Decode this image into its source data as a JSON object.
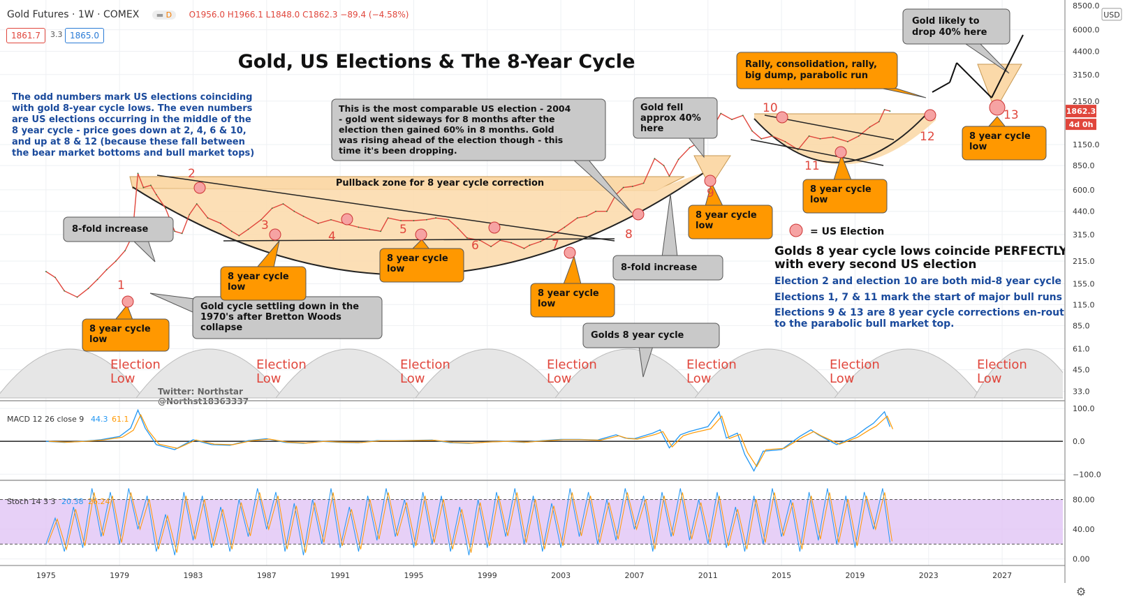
{
  "header": {
    "symbol": "Gold Futures · 1W · COMEX",
    "ohlc": "O1956.0 H1966.1 L1848.0 C1862.3 −89.4 (−4.58%)",
    "bid": "1861.7",
    "spread": "3.3",
    "ask": "1865.0",
    "badge": "D"
  },
  "colors": {
    "price_line": "#e0463c",
    "accent_blue": "#1a4a9c",
    "annotation_red": "#e0463c",
    "box_orange": "#ff9800",
    "box_grey": "#c9c9c9",
    "band_fill": "#fbd9a9",
    "macd_blue": "#2196f3",
    "macd_orange": "#ff9800",
    "stoch_band": "#e1c4f5"
  },
  "chart_data": [
    {
      "type": "line",
      "title": "Gold, US Elections & The 8-Year Cycle",
      "ylog": true,
      "ylim": [
        30,
        8500
      ],
      "xlim": [
        1972.5,
        2030.3
      ],
      "y_ticks": [
        "8500.0",
        "6000.0",
        "4400.0",
        "3150.0",
        "2150.0",
        "1150.0",
        "850.0",
        "600.0",
        "440.0",
        "315.0",
        "215.0",
        "155.0",
        "115.0",
        "85.0",
        "61.0",
        "45.0",
        "33.0"
      ],
      "y_tick_values": [
        8500,
        6000,
        4400,
        3150,
        2150,
        1150,
        850,
        600,
        440,
        315,
        215,
        155,
        115,
        85,
        61,
        45,
        33
      ],
      "x_ticks": [
        "1975",
        "1979",
        "1983",
        "1987",
        "1991",
        "1995",
        "1999",
        "2003",
        "2007",
        "2011",
        "2015",
        "2019",
        "2023",
        "2027"
      ],
      "x_tick_values": [
        1975,
        1979,
        1983,
        1987,
        1991,
        1995,
        1999,
        2003,
        2007,
        2011,
        2015,
        2019,
        2023,
        2027
      ],
      "currency": "USD",
      "last_price": "1862.3",
      "countdown": "4d 0h",
      "series": [
        {
          "x": [
            1975.0,
            1975.5,
            1976.0,
            1976.7,
            1977.3,
            1977.8,
            1978.3,
            1978.8,
            1979.3,
            1979.7,
            1980.0,
            1980.3,
            1980.7,
            1981.0,
            1981.5,
            1982.0,
            1982.4,
            1982.8,
            1983.2,
            1983.8,
            1984.5,
            1985.1,
            1985.5,
            1986.0,
            1986.7,
            1987.3,
            1987.9,
            1988.5,
            1989.0,
            1989.8,
            1990.5,
            1991.2,
            1992.0,
            1992.6,
            1993.2,
            1993.6,
            1994.3,
            1995.0,
            1995.7,
            1996.2,
            1996.9,
            1997.4,
            1997.9,
            1998.6,
            1999.2,
            1999.7,
            2000.3,
            2001.0,
            2001.3,
            2001.9,
            2002.5,
            2003.2,
            2003.9,
            2004.4,
            2004.9,
            2005.5,
            2006.0,
            2006.4,
            2006.9,
            2007.5,
            2008.1,
            2008.6,
            2008.9,
            2009.4,
            2010.0,
            2010.6,
            2011.2,
            2011.7,
            2012.3,
            2012.9,
            2013.4,
            2013.9,
            2014.5,
            2015.2,
            2015.9,
            2016.5,
            2017.1,
            2017.8,
            2018.6,
            2019.2,
            2019.8,
            2020.3,
            2020.6,
            2020.9
          ],
          "values": [
            185,
            170,
            140,
            128,
            145,
            165,
            190,
            215,
            250,
            310,
            760,
            620,
            640,
            560,
            460,
            330,
            320,
            420,
            490,
            400,
            370,
            330,
            310,
            340,
            390,
            460,
            490,
            440,
            410,
            370,
            390,
            370,
            350,
            340,
            330,
            400,
            385,
            385,
            390,
            400,
            390,
            345,
            300,
            290,
            265,
            290,
            280,
            258,
            270,
            285,
            310,
            350,
            400,
            410,
            440,
            440,
            560,
            620,
            630,
            660,
            940,
            850,
            730,
            930,
            1100,
            1200,
            1430,
            1800,
            1650,
            1750,
            1400,
            1250,
            1300,
            1200,
            1070,
            1300,
            1250,
            1280,
            1200,
            1300,
            1480,
            1600,
            1900,
            1862
          ]
        }
      ]
    },
    {
      "type": "line",
      "title": "MACD 12 26 close 9",
      "value1": "44.3",
      "value2": "61.1",
      "ylim": [
        -110,
        115
      ],
      "y_ticks": [
        "100.0",
        "0.0",
        "−100.0"
      ],
      "y_tick_values": [
        100,
        0,
        -100
      ],
      "series": [
        {
          "x": [
            1975,
            1976,
            1977,
            1978,
            1979,
            1979.6,
            1980.0,
            1980.4,
            1981,
            1982,
            1983,
            1984,
            1985,
            1986,
            1987,
            1988,
            1989,
            1990,
            1991,
            1992,
            1993,
            1994,
            1995,
            1996,
            1997,
            1998,
            1999,
            2000,
            2001,
            2002,
            2003,
            2004,
            2005,
            2006,
            2006.5,
            2007,
            2008,
            2008.4,
            2008.9,
            2009.5,
            2010,
            2011,
            2011.6,
            2012,
            2012.6,
            2013,
            2013.5,
            2014,
            2015,
            2016,
            2016.6,
            2017,
            2018,
            2019,
            2019.6,
            2020,
            2020.6,
            2020.9
          ],
          "values": [
            0,
            -3,
            0,
            5,
            15,
            40,
            95,
            40,
            -10,
            -25,
            5,
            -10,
            -12,
            2,
            8,
            -3,
            -6,
            0,
            -3,
            -4,
            2,
            2,
            3,
            4,
            -4,
            -6,
            -2,
            0,
            -3,
            2,
            6,
            6,
            4,
            20,
            10,
            8,
            25,
            35,
            -20,
            20,
            30,
            45,
            90,
            10,
            25,
            -40,
            -90,
            -30,
            -25,
            15,
            35,
            20,
            -10,
            15,
            40,
            55,
            90,
            44
          ]
        }
      ]
    },
    {
      "type": "line",
      "title": "Stoch 14 3 3",
      "value1": "20.38",
      "value2": "26.24",
      "ylim": [
        -5,
        102
      ],
      "y_ticks": [
        "80.00",
        "40.00",
        "0.00"
      ],
      "y_tick_values": [
        80,
        40,
        0
      ],
      "band": [
        20,
        80
      ],
      "series": [
        {
          "x": [
            1975,
            1975.5,
            1976,
            1976.5,
            1977,
            1977.5,
            1978,
            1978.5,
            1979,
            1979.5,
            1980,
            1980.5,
            1981,
            1981.5,
            1982,
            1982.5,
            1983,
            1983.5,
            1984,
            1984.5,
            1985,
            1985.5,
            1986,
            1986.5,
            1987,
            1987.5,
            1988,
            1988.5,
            1989,
            1989.5,
            1990,
            1990.5,
            1991,
            1991.5,
            1992,
            1992.5,
            1993,
            1993.5,
            1994,
            1994.5,
            1995,
            1995.5,
            1996,
            1996.5,
            1997,
            1997.5,
            1998,
            1998.5,
            1999,
            1999.5,
            2000,
            2000.5,
            2001,
            2001.5,
            2002,
            2002.5,
            2003,
            2003.5,
            2004,
            2004.5,
            2005,
            2005.5,
            2006,
            2006.5,
            2007,
            2007.5,
            2008,
            2008.5,
            2009,
            2009.5,
            2010,
            2010.5,
            2011,
            2011.5,
            2012,
            2012.5,
            2013,
            2013.5,
            2014,
            2014.5,
            2015,
            2015.5,
            2016,
            2016.5,
            2017,
            2017.5,
            2018,
            2018.5,
            2019,
            2019.5,
            2020,
            2020.5,
            2020.9
          ],
          "values": [
            20,
            55,
            10,
            70,
            15,
            95,
            30,
            90,
            20,
            95,
            40,
            85,
            10,
            60,
            5,
            90,
            25,
            85,
            15,
            70,
            10,
            80,
            30,
            95,
            40,
            90,
            10,
            75,
            5,
            80,
            20,
            95,
            15,
            70,
            10,
            85,
            25,
            95,
            30,
            80,
            15,
            90,
            20,
            85,
            10,
            70,
            5,
            80,
            15,
            90,
            30,
            95,
            20,
            85,
            10,
            75,
            15,
            95,
            30,
            90,
            20,
            80,
            25,
            95,
            40,
            85,
            10,
            90,
            30,
            95,
            25,
            80,
            20,
            90,
            15,
            70,
            10,
            85,
            20,
            95,
            30,
            80,
            10,
            90,
            25,
            95,
            20,
            85,
            15,
            90,
            40,
            95,
            22
          ]
        }
      ]
    }
  ],
  "annotations": {
    "title": "Gold, US Elections & The 8-Year Cycle",
    "intro_lines": [
      "The odd numbers mark US elections coinciding",
      "with gold 8-year cycle lows. The even numbers",
      "are US elections occurring in the middle of the",
      "8 year cycle - price goes down at 2, 4, 6 & 10,",
      "and up at 8 & 12 (because these fall between",
      "the bear market bottoms and bull market tops)"
    ],
    "callout_2004": [
      "This is the most comparable US election - 2004",
      "- gold went sideways for 8 months after the",
      "election then gained 60% in 8 months. Gold",
      "was rising ahead of the election though - this",
      "time it's been dropping."
    ],
    "gold_fell": [
      "Gold fell",
      "approx 40%",
      "here"
    ],
    "rally": [
      "Rally, consolidation, rally,",
      "big dump, parabolic run"
    ],
    "likely_drop": [
      "Gold likely to",
      "drop 40% here"
    ],
    "pullback_zone": "Pullback zone for 8 year cycle correction",
    "eightfold_1": "8-fold increase",
    "eightfold_2": "8-fold increase",
    "bretton": [
      "Gold cycle settling down in the",
      "1970's after Bretton Woods",
      "collapse"
    ],
    "golds_cycle": "Golds 8 year cycle",
    "cycle_low": [
      "8 year cycle",
      "low"
    ],
    "legend_label": "= US Election",
    "headline": [
      "Golds 8 year cycle lows coincide PERFECTLY",
      "with every second US election"
    ],
    "notes": [
      "Election 2 and election 10 are both mid-8 year cycle tops",
      "Elections 1, 7 & 11 mark the start of major bull runs",
      "Elections 9 & 13 are 8 year cycle corrections en-route",
      "to the parabolic bull market top."
    ],
    "election_low": [
      "Election",
      "Low"
    ],
    "twitter": [
      "Twitter: Northstar",
      "@Northst18363337"
    ],
    "election_numbers": [
      "1",
      "2",
      "3",
      "4",
      "5",
      "6",
      "7",
      "8",
      "9",
      "10",
      "11",
      "12",
      "13"
    ]
  }
}
